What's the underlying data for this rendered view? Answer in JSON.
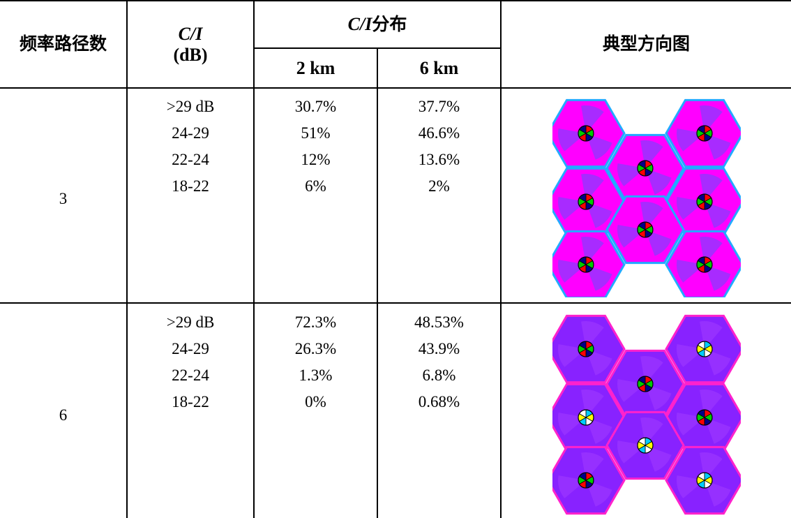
{
  "header": {
    "col_paths": "频率路径数",
    "col_ci_italic": "C/I",
    "col_ci_unit": "(dB)",
    "col_dist_italic": "C/I",
    "col_dist_suffix": " 分布",
    "col_2km": "2 km",
    "col_6km": "6 km",
    "col_pattern": "典型方向图"
  },
  "rows": [
    {
      "paths": "3",
      "ci_ranges": [
        ">29 dB",
        "24-29",
        "22-24",
        "18-22"
      ],
      "dist_2km": [
        "30.7%",
        "51%",
        "12%",
        "6%"
      ],
      "dist_6km": [
        "37.7%",
        "46.6%",
        "13.6%",
        "2%"
      ],
      "pattern": {
        "icon": "hex-cell-coverage-pattern-3",
        "bg": "#ff00ff",
        "shade": "#9933ff",
        "edge": "#22aaff"
      }
    },
    {
      "paths": "6",
      "ci_ranges": [
        ">29 dB",
        "24-29",
        "22-24",
        "18-22"
      ],
      "dist_2km": [
        "72.3%",
        "26.3%",
        "1.3%",
        "0%"
      ],
      "dist_6km": [
        "48.53%",
        "43.9%",
        "6.8%",
        "0.68%"
      ],
      "pattern": {
        "icon": "hex-cell-coverage-pattern-6",
        "bg": "#8822ff",
        "shade": "#9933ff",
        "edge": "#ff22cc"
      }
    }
  ]
}
